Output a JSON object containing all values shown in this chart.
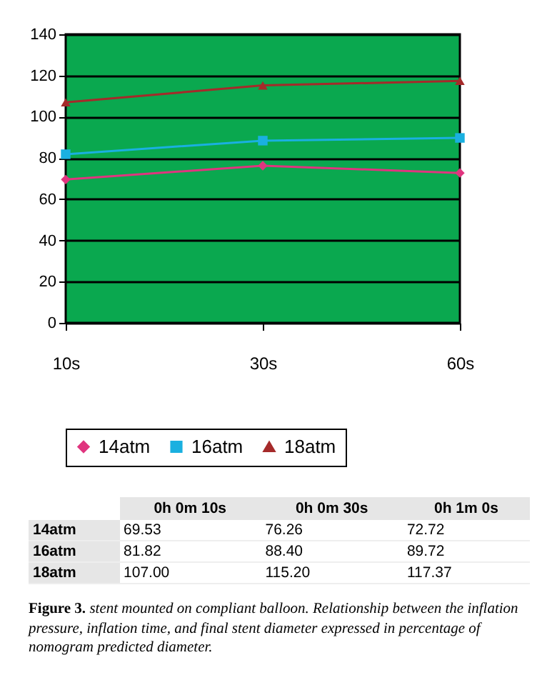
{
  "chart_data": {
    "type": "line",
    "categories": [
      "10s",
      "30s",
      "60s"
    ],
    "ylim": [
      0,
      140
    ],
    "yticks": [
      0,
      20,
      40,
      60,
      80,
      100,
      120,
      140
    ],
    "grid": "y",
    "legend": "bottom",
    "line_style": "solid",
    "series": [
      {
        "name": "14atm",
        "color": "#e0357f",
        "marker": "diamond",
        "values": [
          69.53,
          76.26,
          72.72
        ],
        "value_labels": [
          "69.53",
          "76.26",
          "72.72"
        ]
      },
      {
        "name": "16atm",
        "color": "#1ab0e0",
        "marker": "square",
        "values": [
          81.82,
          88.4,
          89.72
        ],
        "value_labels": [
          "81.82",
          "88.40",
          "89.72"
        ]
      },
      {
        "name": "18atm",
        "color": "#a52a2a",
        "marker": "triangle",
        "values": [
          107.0,
          115.2,
          117.37
        ],
        "value_labels": [
          "107.00",
          "115.20",
          "117.37"
        ]
      }
    ],
    "annotations": [
      "0h 0m 10s",
      "0h 0m 30s",
      "0h 1m 0s",
      "Figure 3. stent mounted on compliant balloon. Relationship between the inflation pressure, inflation time, and final stent diameter expressed in percentage of nomogram predicted diameter."
    ]
  }
}
